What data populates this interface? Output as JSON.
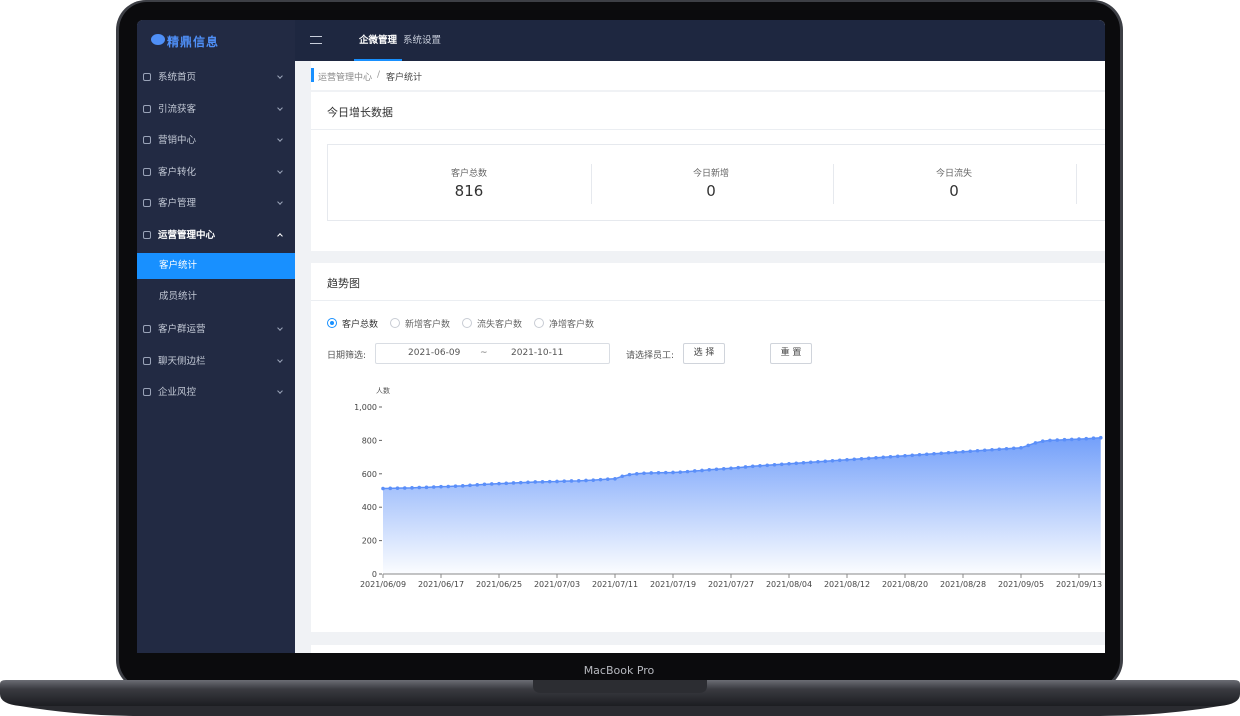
{
  "device_label": "MacBook Pro",
  "brand": "精鼎信息",
  "nav": [
    "企微管理",
    "系统设置"
  ],
  "sidebar": [
    {
      "label": "系统首页"
    },
    {
      "label": "引流获客"
    },
    {
      "label": "营销中心"
    },
    {
      "label": "客户转化"
    },
    {
      "label": "客户管理"
    },
    {
      "label": "运营管理中心",
      "children": [
        {
          "label": "客户统计",
          "active": true
        },
        {
          "label": "成员统计"
        }
      ]
    },
    {
      "label": "客户群运营"
    },
    {
      "label": "聊天侧边栏"
    },
    {
      "label": "企业风控"
    }
  ],
  "breadcrumb": [
    "运营管理中心",
    "客户统计"
  ],
  "breadcrumb_separator": "/",
  "today": {
    "title": "今日增长数据",
    "stats": [
      {
        "label": "客户总数",
        "value": 816
      },
      {
        "label": "今日新增",
        "value": 0
      },
      {
        "label": "今日流失",
        "value": 0
      }
    ]
  },
  "trend": {
    "title": "趋势图",
    "metrics": [
      "客户总数",
      "新增客户数",
      "流失客户数",
      "净增客户数"
    ],
    "date_label": "日期筛选:",
    "date_start": "2021-06-09",
    "date_sep": "~",
    "date_end": "2021-10-11",
    "staff_label": "请选择员工:",
    "select_button": "选 择",
    "reset_button": "重 置"
  },
  "chart_data": {
    "type": "line",
    "y_label": "人数",
    "color": "#5b8ff9",
    "categories": [
      "2021/06/09",
      null,
      null,
      null,
      null,
      null,
      null,
      null,
      "2021/06/17",
      null,
      null,
      null,
      null,
      null,
      null,
      null,
      "2021/06/25",
      null,
      null,
      null,
      null,
      null,
      null,
      null,
      "2021/07/03",
      null,
      null,
      null,
      null,
      null,
      null,
      null,
      "2021/07/11",
      null,
      null,
      null,
      null,
      null,
      null,
      null,
      "2021/07/19",
      null,
      null,
      null,
      null,
      null,
      null,
      null,
      "2021/07/27",
      null,
      null,
      null,
      null,
      null,
      null,
      null,
      "2021/08/04",
      null,
      null,
      null,
      null,
      null,
      null,
      null,
      "2021/08/12",
      null,
      null,
      null,
      null,
      null,
      null,
      null,
      "2021/08/20",
      null,
      null,
      null,
      null,
      null,
      null,
      null,
      "2021/08/28",
      null,
      null,
      null,
      null,
      null,
      null,
      null,
      "2021/09/05",
      null,
      null,
      null,
      null,
      null,
      null,
      null,
      "2021/09/13",
      null,
      null,
      null
    ],
    "values": [
      512,
      513,
      514,
      515,
      516,
      518,
      519,
      521,
      523,
      524,
      526,
      528,
      531,
      534,
      537,
      539,
      541,
      543,
      545,
      547,
      549,
      551,
      552,
      553,
      554,
      556,
      557,
      558,
      560,
      562,
      565,
      568,
      570,
      585,
      595,
      600,
      603,
      605,
      606,
      607,
      608,
      610,
      613,
      617,
      620,
      624,
      627,
      630,
      633,
      637,
      641,
      645,
      648,
      651,
      654,
      657,
      660,
      663,
      666,
      669,
      672,
      675,
      678,
      681,
      684,
      687,
      690,
      693,
      696,
      699,
      702,
      705,
      708,
      711,
      714,
      717,
      720,
      723,
      726,
      729,
      732,
      735,
      738,
      741,
      744,
      747,
      750,
      753,
      756,
      770,
      785,
      795,
      800,
      802,
      804,
      806,
      808,
      810,
      813,
      816
    ],
    "ylim": [
      0,
      1000
    ],
    "yticks": [
      0,
      200,
      400,
      600,
      800,
      {
        "value": 1000,
        "label": "1,000"
      }
    ]
  }
}
